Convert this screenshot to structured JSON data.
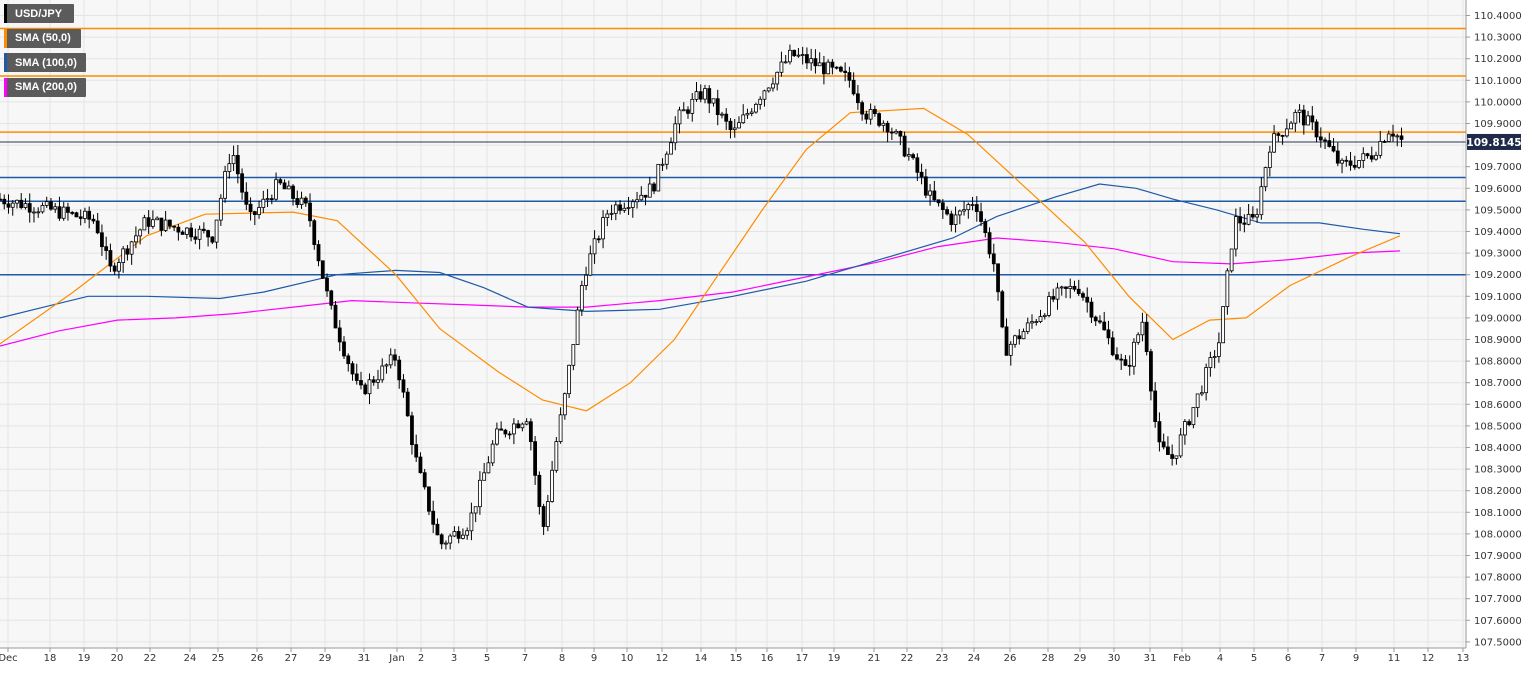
{
  "legend": {
    "items": [
      {
        "label": "USD/JPY",
        "color": "#000000"
      },
      {
        "label": "SMA (50,0)",
        "color": "#ff8c00"
      },
      {
        "label": "SMA (100,0)",
        "color": "#1e5aa8"
      },
      {
        "label": "SMA (200,0)",
        "color": "#ff00ff"
      }
    ]
  },
  "current_price": {
    "value": "109.8145"
  },
  "chart_data": {
    "type": "candlestick",
    "instrument": "USD/JPY",
    "ylim": [
      107.45,
      110.45
    ],
    "y_ticks": [
      "110.4000",
      "110.3000",
      "110.2000",
      "110.1000",
      "110.0000",
      "109.9000",
      "109.8000",
      "109.7000",
      "109.6000",
      "109.5000",
      "109.4000",
      "109.3000",
      "109.2000",
      "109.1000",
      "109.0000",
      "108.9000",
      "108.8000",
      "108.7000",
      "108.6000",
      "108.5000",
      "108.4000",
      "108.3000",
      "108.2000",
      "108.1000",
      "108.0000",
      "107.9000",
      "107.8000",
      "107.7000",
      "107.6000",
      "107.5000"
    ],
    "x_ticks": [
      "Dec",
      "18",
      "19",
      "20",
      "22",
      "24",
      "25",
      "26",
      "27",
      "29",
      "31",
      "Jan",
      "2",
      "3",
      "5",
      "7",
      "8",
      "9",
      "10",
      "12",
      "14",
      "15",
      "16",
      "17",
      "19",
      "21",
      "22",
      "23",
      "24",
      "26",
      "28",
      "29",
      "30",
      "31",
      "Feb",
      "4",
      "5",
      "6",
      "7",
      "9",
      "11",
      "12",
      "13"
    ],
    "grid": true,
    "horizontal_levels": [
      {
        "value": 110.34,
        "color": "#ff8c00"
      },
      {
        "value": 110.12,
        "color": "#ff8c00"
      },
      {
        "value": 109.86,
        "color": "#ff8c00"
      },
      {
        "value": 109.65,
        "color": "#1e5aa8"
      },
      {
        "value": 109.54,
        "color": "#1e5aa8"
      },
      {
        "value": 109.2,
        "color": "#1e5aa8"
      }
    ],
    "current_price_line": 109.8145,
    "keypoints": [
      {
        "x": 0,
        "close": 109.55
      },
      {
        "x": 0.035,
        "close": 109.5
      },
      {
        "x": 0.065,
        "close": 109.45
      },
      {
        "x": 0.075,
        "close": 109.22
      },
      {
        "x": 0.1,
        "close": 109.45
      },
      {
        "x": 0.145,
        "close": 109.38
      },
      {
        "x": 0.158,
        "close": 109.79
      },
      {
        "x": 0.17,
        "close": 109.45
      },
      {
        "x": 0.19,
        "close": 109.62
      },
      {
        "x": 0.21,
        "close": 109.5
      },
      {
        "x": 0.225,
        "close": 109.05
      },
      {
        "x": 0.245,
        "close": 108.65
      },
      {
        "x": 0.27,
        "close": 108.82
      },
      {
        "x": 0.285,
        "close": 108.3
      },
      {
        "x": 0.3,
        "close": 107.95
      },
      {
        "x": 0.32,
        "close": 108.05
      },
      {
        "x": 0.338,
        "close": 108.45
      },
      {
        "x": 0.36,
        "close": 108.55
      },
      {
        "x": 0.37,
        "close": 108.0
      },
      {
        "x": 0.38,
        "close": 108.45
      },
      {
        "x": 0.385,
        "close": 108.62
      },
      {
        "x": 0.398,
        "close": 109.2
      },
      {
        "x": 0.415,
        "close": 109.5
      },
      {
        "x": 0.445,
        "close": 109.6
      },
      {
        "x": 0.462,
        "close": 109.92
      },
      {
        "x": 0.48,
        "close": 110.05
      },
      {
        "x": 0.5,
        "close": 109.85
      },
      {
        "x": 0.52,
        "close": 110.05
      },
      {
        "x": 0.54,
        "close": 110.22
      },
      {
        "x": 0.565,
        "close": 110.15
      },
      {
        "x": 0.58,
        "close": 110.1
      },
      {
        "x": 0.59,
        "close": 109.95
      },
      {
        "x": 0.605,
        "close": 109.9
      },
      {
        "x": 0.62,
        "close": 109.75
      },
      {
        "x": 0.635,
        "close": 109.55
      },
      {
        "x": 0.65,
        "close": 109.45
      },
      {
        "x": 0.665,
        "close": 109.55
      },
      {
        "x": 0.678,
        "close": 109.25
      },
      {
        "x": 0.685,
        "close": 108.85
      },
      {
        "x": 0.7,
        "close": 108.95
      },
      {
        "x": 0.72,
        "close": 109.1
      },
      {
        "x": 0.735,
        "close": 109.15
      },
      {
        "x": 0.752,
        "close": 108.95
      },
      {
        "x": 0.768,
        "close": 108.75
      },
      {
        "x": 0.78,
        "close": 109.0
      },
      {
        "x": 0.79,
        "close": 108.4
      },
      {
        "x": 0.8,
        "close": 108.35
      },
      {
        "x": 0.815,
        "close": 108.6
      },
      {
        "x": 0.832,
        "close": 108.9
      },
      {
        "x": 0.842,
        "close": 109.45
      },
      {
        "x": 0.856,
        "close": 109.45
      },
      {
        "x": 0.866,
        "close": 109.8
      },
      {
        "x": 0.885,
        "close": 109.95
      },
      {
        "x": 0.9,
        "close": 109.85
      },
      {
        "x": 0.915,
        "close": 109.7
      },
      {
        "x": 0.935,
        "close": 109.75
      },
      {
        "x": 0.948,
        "close": 109.88
      },
      {
        "x": 0.956,
        "close": 109.82
      }
    ],
    "sma50": [
      [
        0,
        108.88
      ],
      [
        0.05,
        109.12
      ],
      [
        0.1,
        109.38
      ],
      [
        0.14,
        109.48
      ],
      [
        0.2,
        109.49
      ],
      [
        0.23,
        109.45
      ],
      [
        0.27,
        109.2
      ],
      [
        0.3,
        108.95
      ],
      [
        0.34,
        108.75
      ],
      [
        0.37,
        108.62
      ],
      [
        0.4,
        108.57
      ],
      [
        0.43,
        108.7
      ],
      [
        0.46,
        108.9
      ],
      [
        0.49,
        109.2
      ],
      [
        0.52,
        109.5
      ],
      [
        0.55,
        109.78
      ],
      [
        0.58,
        109.95
      ],
      [
        0.63,
        109.97
      ],
      [
        0.66,
        109.85
      ],
      [
        0.7,
        109.6
      ],
      [
        0.74,
        109.35
      ],
      [
        0.77,
        109.1
      ],
      [
        0.8,
        108.9
      ],
      [
        0.825,
        108.99
      ],
      [
        0.85,
        109.0
      ],
      [
        0.88,
        109.15
      ],
      [
        0.92,
        109.28
      ],
      [
        0.955,
        109.38
      ]
    ],
    "sma100": [
      [
        0,
        109.0
      ],
      [
        0.03,
        109.05
      ],
      [
        0.06,
        109.1
      ],
      [
        0.1,
        109.1
      ],
      [
        0.15,
        109.09
      ],
      [
        0.18,
        109.12
      ],
      [
        0.23,
        109.2
      ],
      [
        0.27,
        109.22
      ],
      [
        0.3,
        109.21
      ],
      [
        0.33,
        109.14
      ],
      [
        0.36,
        109.05
      ],
      [
        0.4,
        109.03
      ],
      [
        0.45,
        109.04
      ],
      [
        0.5,
        109.1
      ],
      [
        0.55,
        109.17
      ],
      [
        0.6,
        109.27
      ],
      [
        0.65,
        109.37
      ],
      [
        0.68,
        109.47
      ],
      [
        0.72,
        109.56
      ],
      [
        0.75,
        109.62
      ],
      [
        0.775,
        109.6
      ],
      [
        0.8,
        109.55
      ],
      [
        0.83,
        109.5
      ],
      [
        0.86,
        109.44
      ],
      [
        0.9,
        109.44
      ],
      [
        0.93,
        109.41
      ],
      [
        0.955,
        109.39
      ]
    ],
    "sma200": [
      [
        0,
        108.87
      ],
      [
        0.04,
        108.94
      ],
      [
        0.08,
        108.99
      ],
      [
        0.12,
        109.0
      ],
      [
        0.16,
        109.02
      ],
      [
        0.2,
        109.05
      ],
      [
        0.24,
        109.08
      ],
      [
        0.28,
        109.07
      ],
      [
        0.32,
        109.06
      ],
      [
        0.36,
        109.05
      ],
      [
        0.4,
        109.05
      ],
      [
        0.45,
        109.08
      ],
      [
        0.5,
        109.12
      ],
      [
        0.55,
        109.19
      ],
      [
        0.6,
        109.26
      ],
      [
        0.64,
        109.33
      ],
      [
        0.68,
        109.37
      ],
      [
        0.72,
        109.35
      ],
      [
        0.76,
        109.32
      ],
      [
        0.8,
        109.26
      ],
      [
        0.84,
        109.25
      ],
      [
        0.88,
        109.27
      ],
      [
        0.92,
        109.3
      ],
      [
        0.955,
        109.31
      ]
    ]
  }
}
